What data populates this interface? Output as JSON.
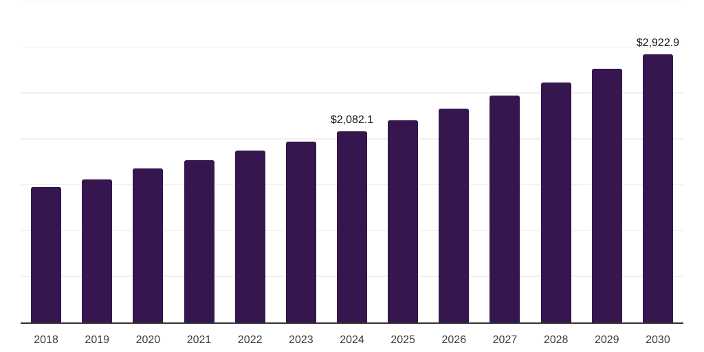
{
  "chart_data": {
    "type": "bar",
    "title": "",
    "xlabel": "",
    "ylabel": "",
    "categories": [
      "2018",
      "2019",
      "2020",
      "2021",
      "2022",
      "2023",
      "2024",
      "2025",
      "2026",
      "2027",
      "2028",
      "2029",
      "2030"
    ],
    "values": [
      1475,
      1555,
      1675,
      1767,
      1870,
      1970,
      2082.1,
      2202,
      2331,
      2468,
      2612,
      2766,
      2922.9
    ],
    "labeled_points": [
      {
        "category": "2024",
        "label": "$2,082.1"
      },
      {
        "category": "2030",
        "label": "$2,922.9"
      }
    ],
    "ylim": [
      0,
      3500
    ],
    "grid_interval": 500,
    "grid": true,
    "legend": false,
    "y_axis_ticks_visible": false,
    "colors": {
      "bar": "#35164e",
      "gridline": "#f0f0f0",
      "axis": "#333333",
      "tick_label": "#3d3d3d",
      "data_label": "#161616",
      "background": "#ffffff"
    }
  }
}
